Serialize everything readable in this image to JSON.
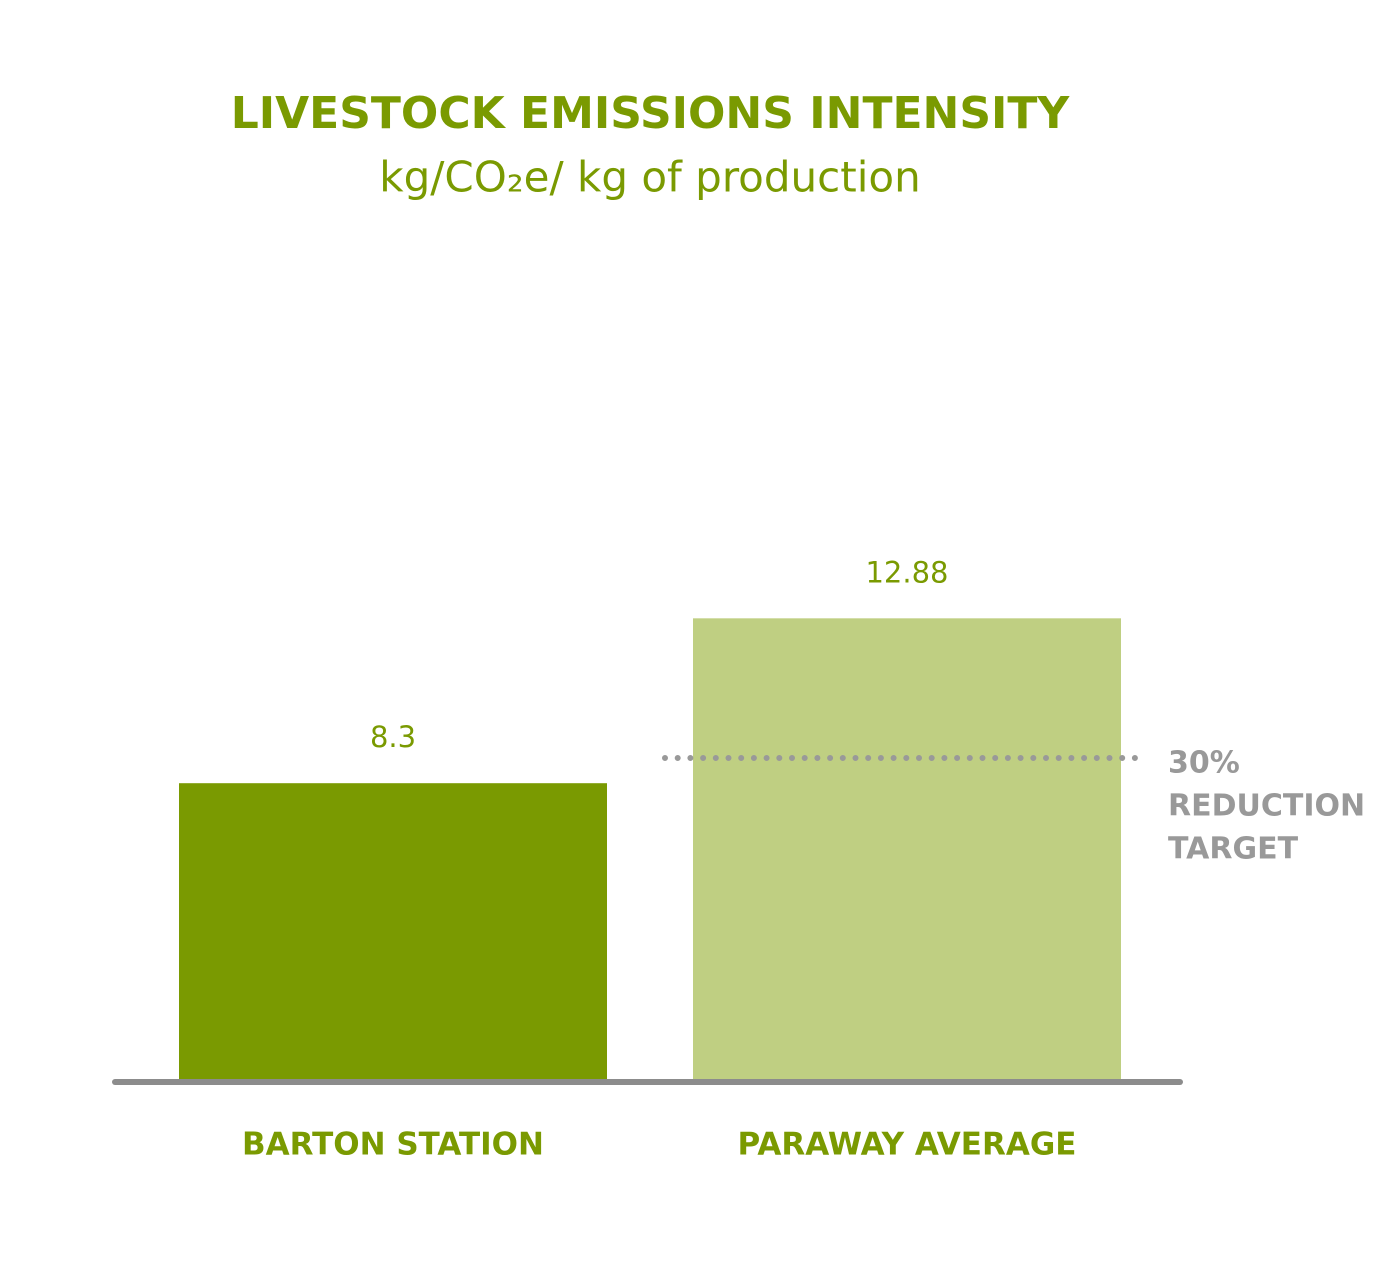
{
  "chart_data": {
    "type": "bar",
    "title": "LIVESTOCK EMISSIONS INTENSITY",
    "subtitle": "kg/CO₂e/ kg of production",
    "categories": [
      "BARTON STATION",
      "PARAWAY AVERAGE"
    ],
    "values": [
      8.3,
      12.88
    ],
    "colors": [
      "#7a9a01",
      "#bfcf82"
    ],
    "ylim": [
      0,
      14
    ],
    "grid": false,
    "target": {
      "value": 9.0,
      "label_lines": [
        "30%",
        "REDUCTION",
        "TARGET"
      ],
      "color": "#999999"
    }
  }
}
